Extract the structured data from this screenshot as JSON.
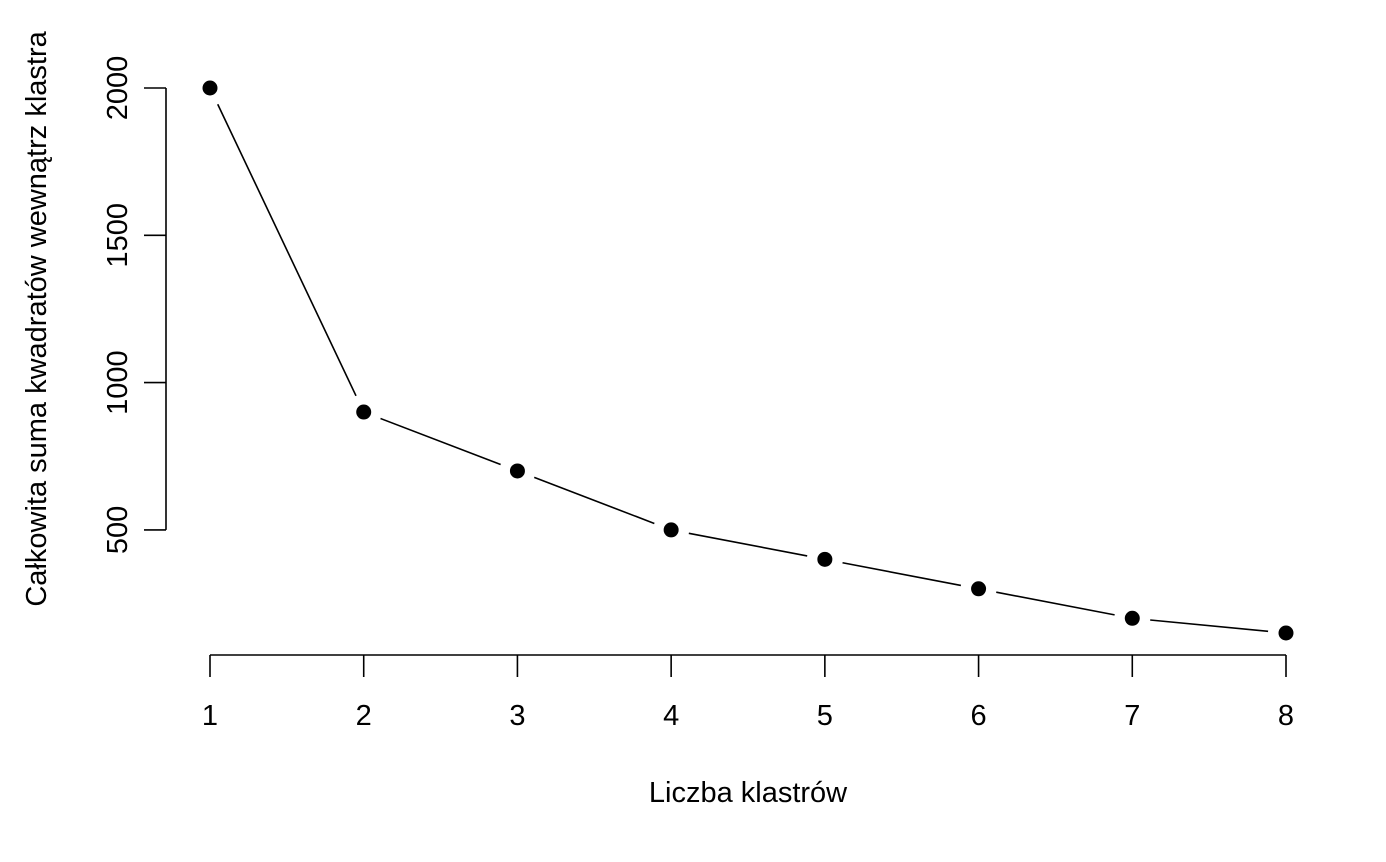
{
  "chart_data": {
    "type": "line",
    "title": "",
    "xlabel": "Liczba klastrów",
    "ylabel": "Całkowita suma kwadratów wewnątrz klastra",
    "x": [
      1,
      2,
      3,
      4,
      5,
      6,
      7,
      8
    ],
    "series": [
      {
        "values": [
          2000,
          900,
          700,
          500,
          400,
          300,
          200,
          150
        ]
      }
    ],
    "x_ticks": [
      1,
      2,
      3,
      4,
      5,
      6,
      7,
      8
    ],
    "y_ticks": [
      500,
      1000,
      1500,
      2000
    ],
    "x_tick_labels": [
      "1",
      "2",
      "3",
      "4",
      "5",
      "6",
      "7",
      "8"
    ],
    "y_tick_labels": [
      "500",
      "1000",
      "1500",
      "2000"
    ],
    "xlim": [
      1,
      8
    ],
    "ylim": [
      150,
      2000
    ],
    "grid": false,
    "legend": "none",
    "marker": "filled-circle",
    "line_style": "gapped-segments",
    "color": "#000000"
  }
}
